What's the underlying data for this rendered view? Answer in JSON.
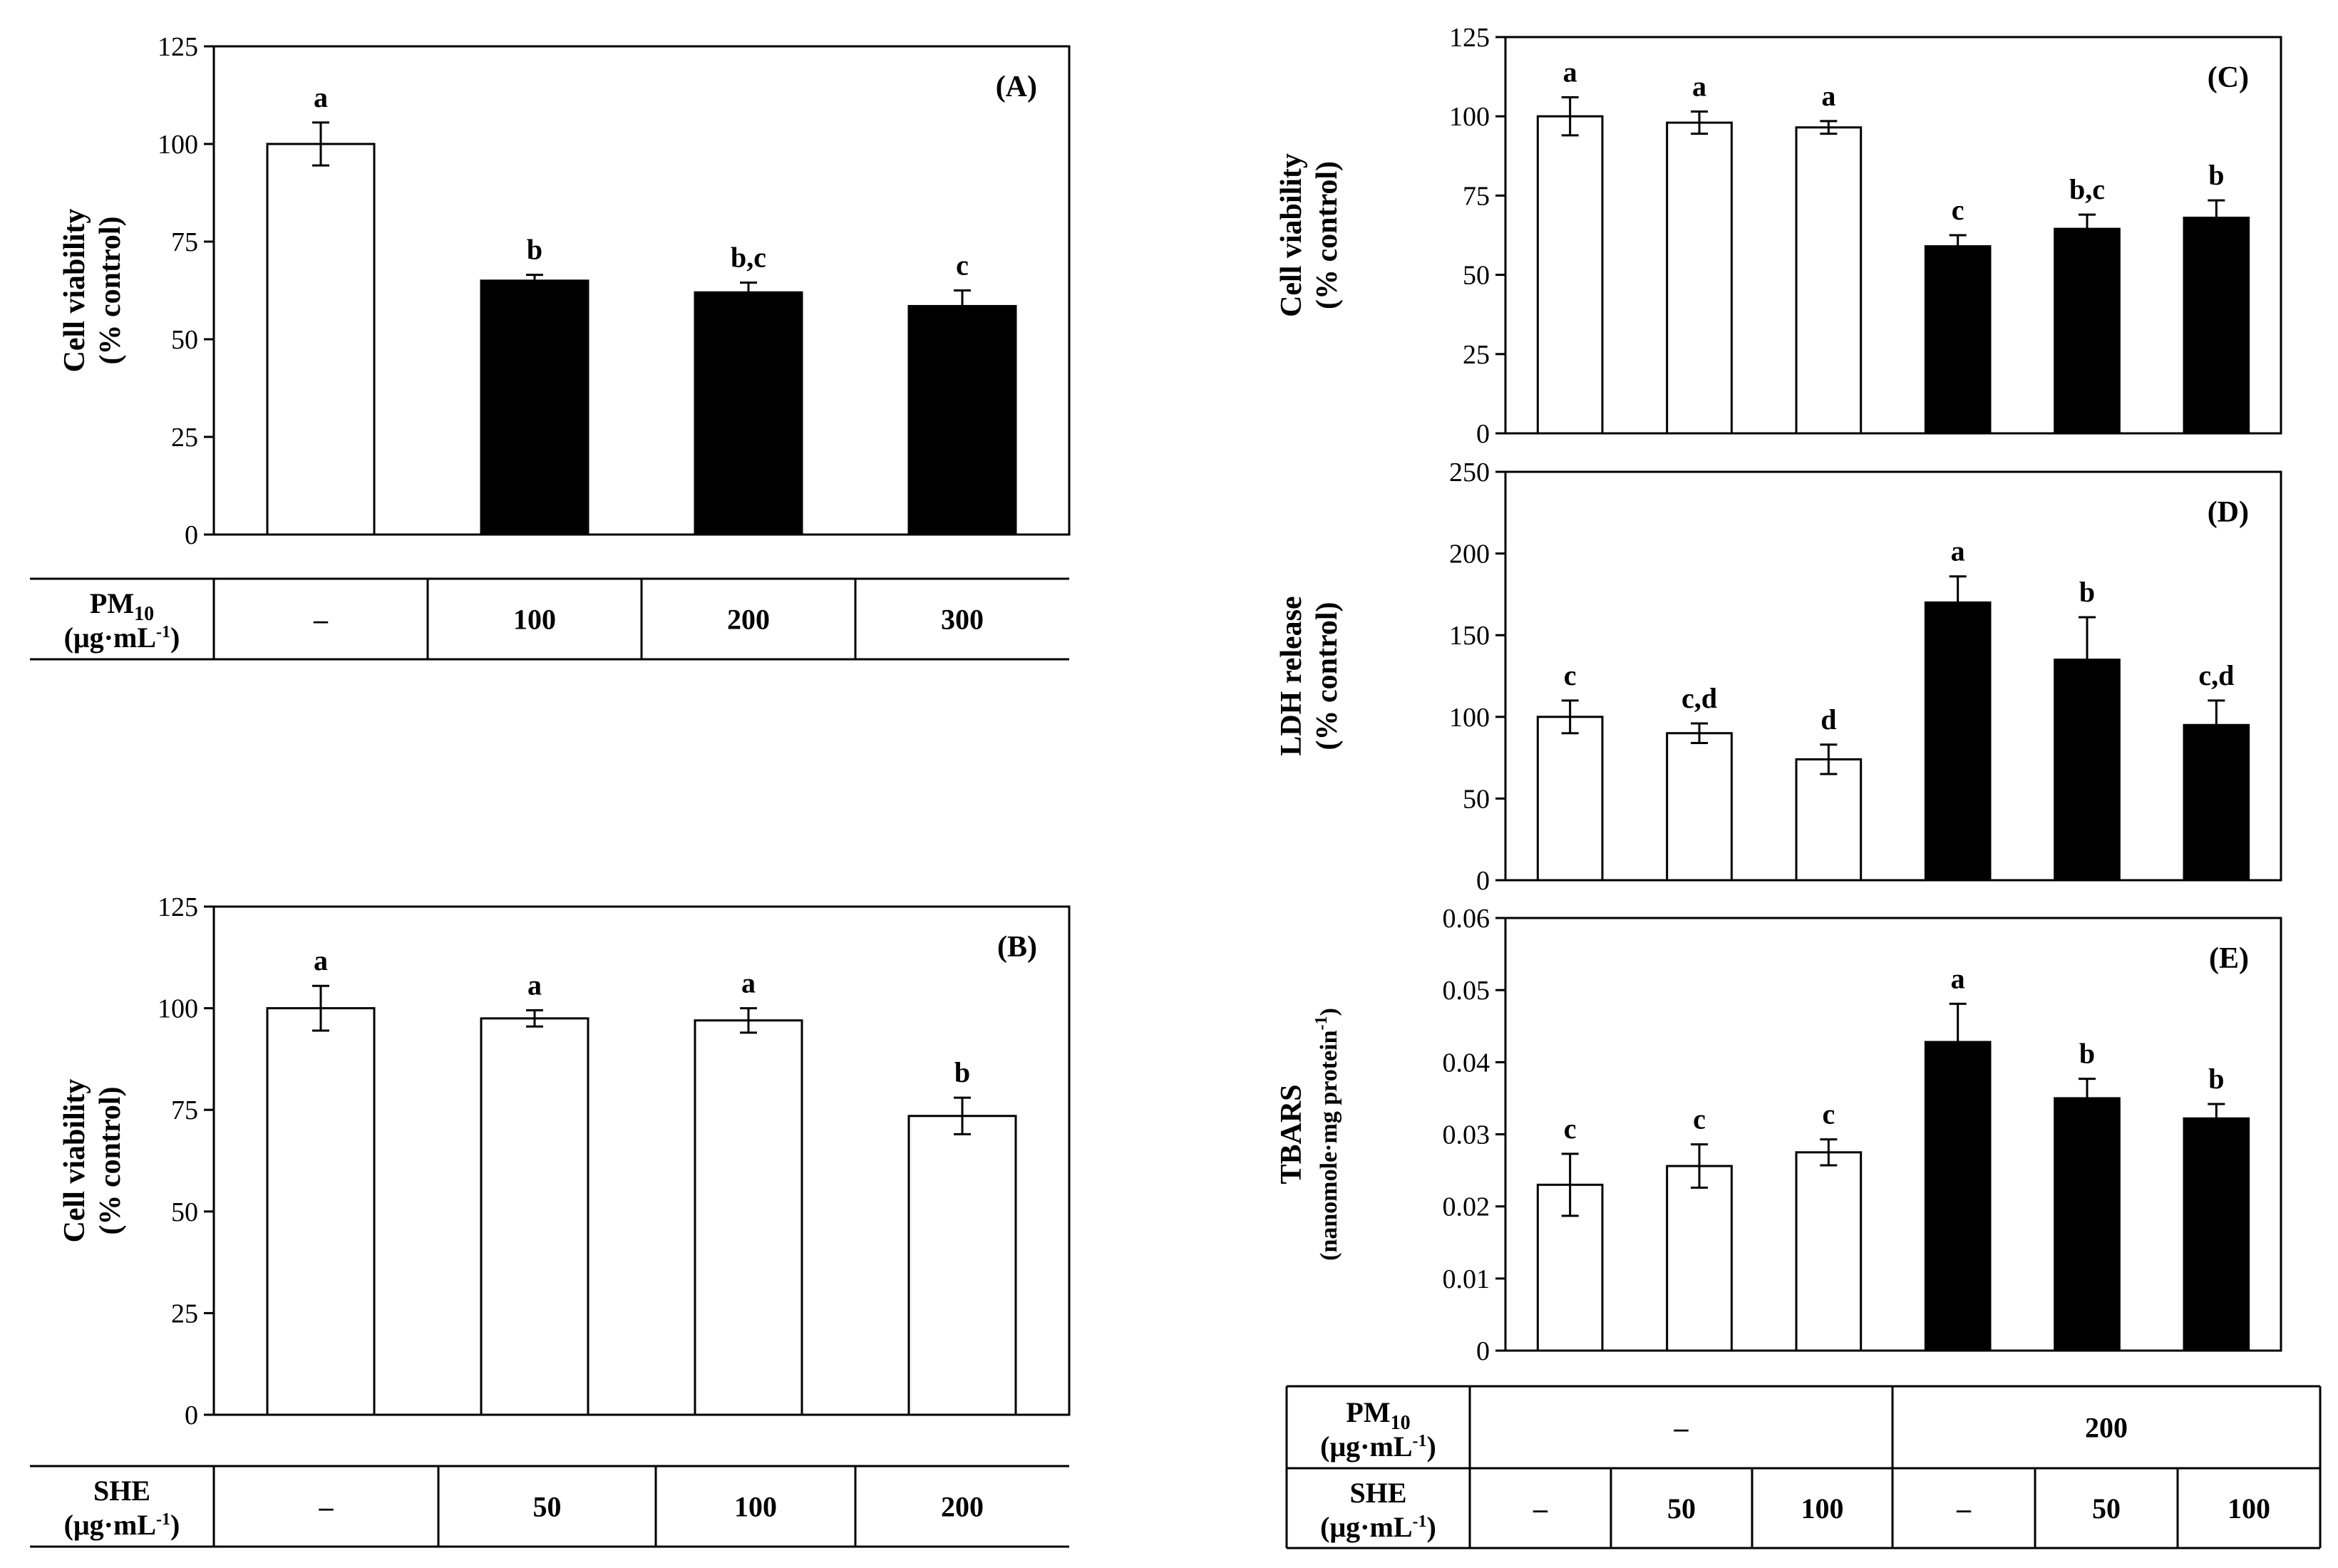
{
  "chart_data": [
    {
      "id": "A",
      "type": "bar",
      "panel_label": "(A)",
      "ylabel": [
        "Cell viability",
        "(% control)"
      ],
      "ylim": [
        0,
        125
      ],
      "yticks": [
        "0",
        "25",
        "50",
        "75",
        "100",
        "125"
      ],
      "bars": [
        {
          "value": 100,
          "error": 5.5,
          "letter": "a",
          "fill": "#ffffff"
        },
        {
          "value": 65,
          "error": 1.5,
          "letter": "b",
          "fill": "#000000"
        },
        {
          "value": 62,
          "error": 2.5,
          "letter": "b,c",
          "fill": "#000000"
        },
        {
          "value": 58.5,
          "error": 4,
          "letter": "c",
          "fill": "#000000"
        }
      ],
      "table": {
        "rows": [
          {
            "label_main": "PM",
            "label_sub": "10",
            "label_unit": "(μg·mL",
            "label_exp": "-1",
            "label_close": ")",
            "cells": [
              "–",
              "100",
              "200",
              "300"
            ]
          }
        ]
      }
    },
    {
      "id": "B",
      "type": "bar",
      "panel_label": "(B)",
      "ylabel": [
        "Cell viability",
        "(% control)"
      ],
      "ylim": [
        0,
        125
      ],
      "yticks": [
        "0",
        "25",
        "50",
        "75",
        "100",
        "125"
      ],
      "bars": [
        {
          "value": 100,
          "error": 5.5,
          "letter": "a",
          "fill": "#ffffff"
        },
        {
          "value": 97.5,
          "error": 2,
          "letter": "a",
          "fill": "#ffffff"
        },
        {
          "value": 97,
          "error": 3,
          "letter": "a",
          "fill": "#ffffff"
        },
        {
          "value": 73.5,
          "error": 4.5,
          "letter": "b",
          "fill": "#ffffff"
        }
      ],
      "table": {
        "rows": [
          {
            "label_main": "SHE",
            "label_sub": "",
            "label_unit": "(μg·mL",
            "label_exp": "-1",
            "label_close": ")",
            "cells": [
              "–",
              "50",
              "100",
              "200"
            ]
          }
        ]
      }
    },
    {
      "id": "C",
      "type": "bar",
      "panel_label": "(C)",
      "ylabel": [
        "Cell viability",
        "(% control)"
      ],
      "ylim": [
        0,
        125
      ],
      "yticks": [
        "0",
        "25",
        "50",
        "75",
        "100",
        "125"
      ],
      "bars": [
        {
          "value": 100,
          "error": 6,
          "letter": "a",
          "fill": "#ffffff"
        },
        {
          "value": 98,
          "error": 3.5,
          "letter": "a",
          "fill": "#ffffff"
        },
        {
          "value": 96.5,
          "error": 2,
          "letter": "a",
          "fill": "#ffffff"
        },
        {
          "value": 59,
          "error": 3.5,
          "letter": "c",
          "fill": "#000000"
        },
        {
          "value": 64.5,
          "error": 4.5,
          "letter": "b,c",
          "fill": "#000000"
        },
        {
          "value": 68,
          "error": 5.5,
          "letter": "b",
          "fill": "#000000"
        }
      ]
    },
    {
      "id": "D",
      "type": "bar",
      "panel_label": "(D)",
      "ylabel": [
        "LDH release",
        "(% control)"
      ],
      "ylim": [
        0,
        250
      ],
      "yticks": [
        "0",
        "50",
        "100",
        "150",
        "200",
        "250"
      ],
      "bars": [
        {
          "value": 100,
          "error": 10,
          "letter": "c",
          "fill": "#ffffff"
        },
        {
          "value": 90,
          "error": 6,
          "letter": "c,d",
          "fill": "#ffffff"
        },
        {
          "value": 74,
          "error": 9,
          "letter": "d",
          "fill": "#ffffff"
        },
        {
          "value": 170,
          "error": 16,
          "letter": "a",
          "fill": "#000000"
        },
        {
          "value": 135,
          "error": 26,
          "letter": "b",
          "fill": "#000000"
        },
        {
          "value": 95,
          "error": 15,
          "letter": "c,d",
          "fill": "#000000"
        }
      ]
    },
    {
      "id": "E",
      "type": "bar",
      "panel_label": "(E)",
      "ylabel_main": "TBARS",
      "ylabel_unit": "(nanomole·mg protein",
      "ylabel_exp": "-1",
      "ylabel_close": ")",
      "ylim": [
        0,
        0.06
      ],
      "yticks": [
        "0",
        "0.01",
        "0.02",
        "0.03",
        "0.04",
        "0.05",
        "0.06"
      ],
      "bars": [
        {
          "value": 0.023,
          "error": 0.0043,
          "letter": "c",
          "fill": "#ffffff"
        },
        {
          "value": 0.0256,
          "error": 0.003,
          "letter": "c",
          "fill": "#ffffff"
        },
        {
          "value": 0.0275,
          "error": 0.0018,
          "letter": "c",
          "fill": "#ffffff"
        },
        {
          "value": 0.0428,
          "error": 0.0053,
          "letter": "a",
          "fill": "#000000"
        },
        {
          "value": 0.035,
          "error": 0.0027,
          "letter": "b",
          "fill": "#000000"
        },
        {
          "value": 0.0322,
          "error": 0.002,
          "letter": "b",
          "fill": "#000000"
        }
      ],
      "table": {
        "rows": [
          {
            "label_main": "PM",
            "label_sub": "10",
            "label_unit": "(μg·mL",
            "label_exp": "-1",
            "label_close": ")",
            "groups": [
              "–",
              "200"
            ]
          },
          {
            "label_main": "SHE",
            "label_sub": "",
            "label_unit": "(μg·mL",
            "label_exp": "-1",
            "label_close": ")",
            "cells": [
              "–",
              "50",
              "100",
              "–",
              "50",
              "100"
            ]
          }
        ]
      }
    }
  ]
}
